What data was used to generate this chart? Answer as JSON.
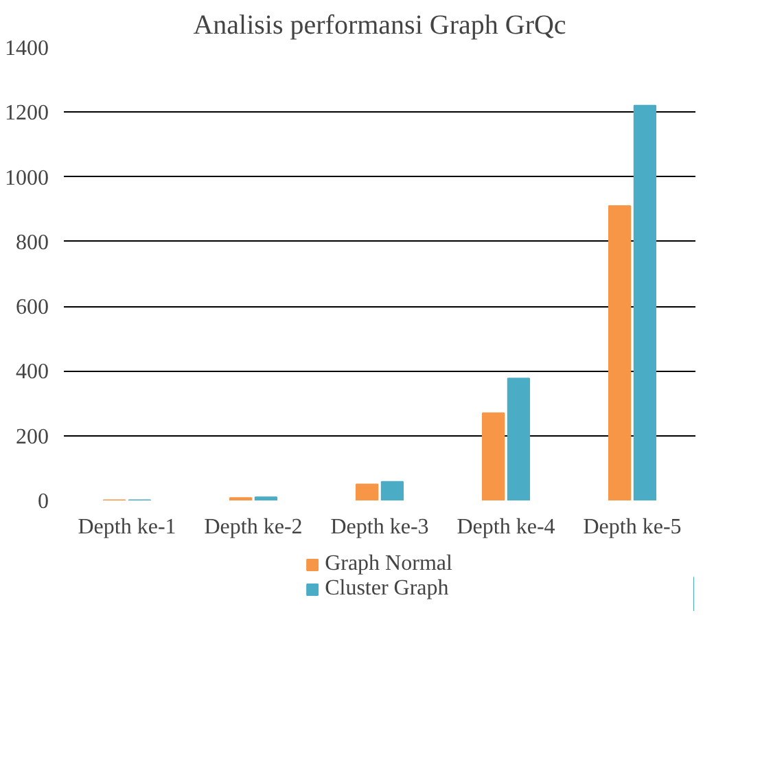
{
  "chart_data": {
    "type": "bar",
    "title": "Analisis performansi Graph GrQc",
    "categories": [
      "Depth ke-1",
      "Depth ke-2",
      "Depth ke-3",
      "Depth ke-4",
      "Depth ke-5"
    ],
    "series": [
      {
        "name": "Graph Normal",
        "color": "#f79646",
        "values": [
          1,
          8,
          50,
          270,
          910
        ]
      },
      {
        "name": "Cluster Graph",
        "color": "#4bacc6",
        "values": [
          1,
          10,
          58,
          377,
          1220
        ]
      }
    ],
    "ylim": [
      0,
      1400
    ],
    "yticks": [
      0,
      200,
      400,
      600,
      800,
      1000,
      1200,
      1400
    ],
    "grid": "y",
    "legend": "bottom"
  }
}
